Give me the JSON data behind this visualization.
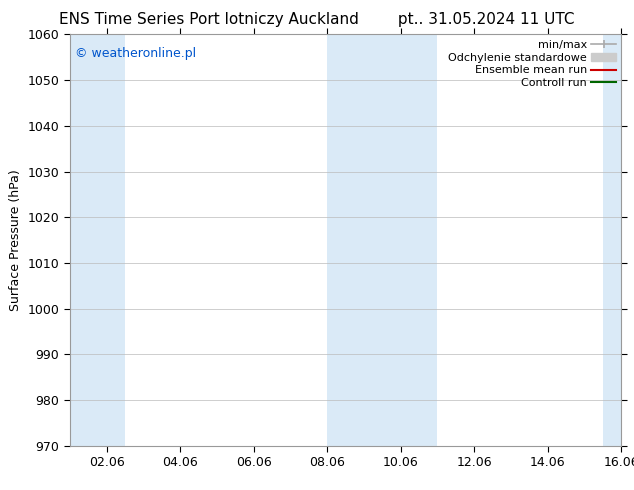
{
  "title_left": "ENS Time Series Port lotniczy Auckland",
  "title_right": "pt.. 31.05.2024 11 UTC",
  "ylabel": "Surface Pressure (hPa)",
  "ylim": [
    970,
    1060
  ],
  "yticks": [
    970,
    980,
    990,
    1000,
    1010,
    1020,
    1030,
    1040,
    1050,
    1060
  ],
  "xtick_labels": [
    "02.06",
    "04.06",
    "06.06",
    "08.06",
    "10.06",
    "12.06",
    "14.06",
    "16.06"
  ],
  "xtick_positions": [
    1,
    3,
    5,
    7,
    9,
    11,
    13,
    15
  ],
  "xlim": [
    0,
    15
  ],
  "watermark": "© weatheronline.pl",
  "watermark_color": "#0055cc",
  "bg_color": "#ffffff",
  "plot_bg_color": "#ffffff",
  "shaded_bands": [
    {
      "x_start": 0,
      "x_end": 1.5,
      "color": "#daeaf7"
    },
    {
      "x_start": 7,
      "x_end": 10,
      "color": "#daeaf7"
    },
    {
      "x_start": 14.5,
      "x_end": 15,
      "color": "#daeaf7"
    }
  ],
  "legend_items": [
    {
      "label": "min/max",
      "color": "#aaaaaa",
      "lw": 1.2
    },
    {
      "label": "Odchylenie standardowe",
      "color": "#cccccc",
      "lw": 7
    },
    {
      "label": "Ensemble mean run",
      "color": "#cc0000",
      "lw": 1.5
    },
    {
      "label": "Controll run",
      "color": "#006600",
      "lw": 1.5
    }
  ],
  "title_fontsize": 11,
  "tick_fontsize": 9,
  "ylabel_fontsize": 9,
  "legend_fontsize": 8,
  "watermark_fontsize": 9,
  "grid_color": "#bbbbbb",
  "grid_lw": 0.5,
  "spine_color": "#999999",
  "spine_lw": 0.8
}
